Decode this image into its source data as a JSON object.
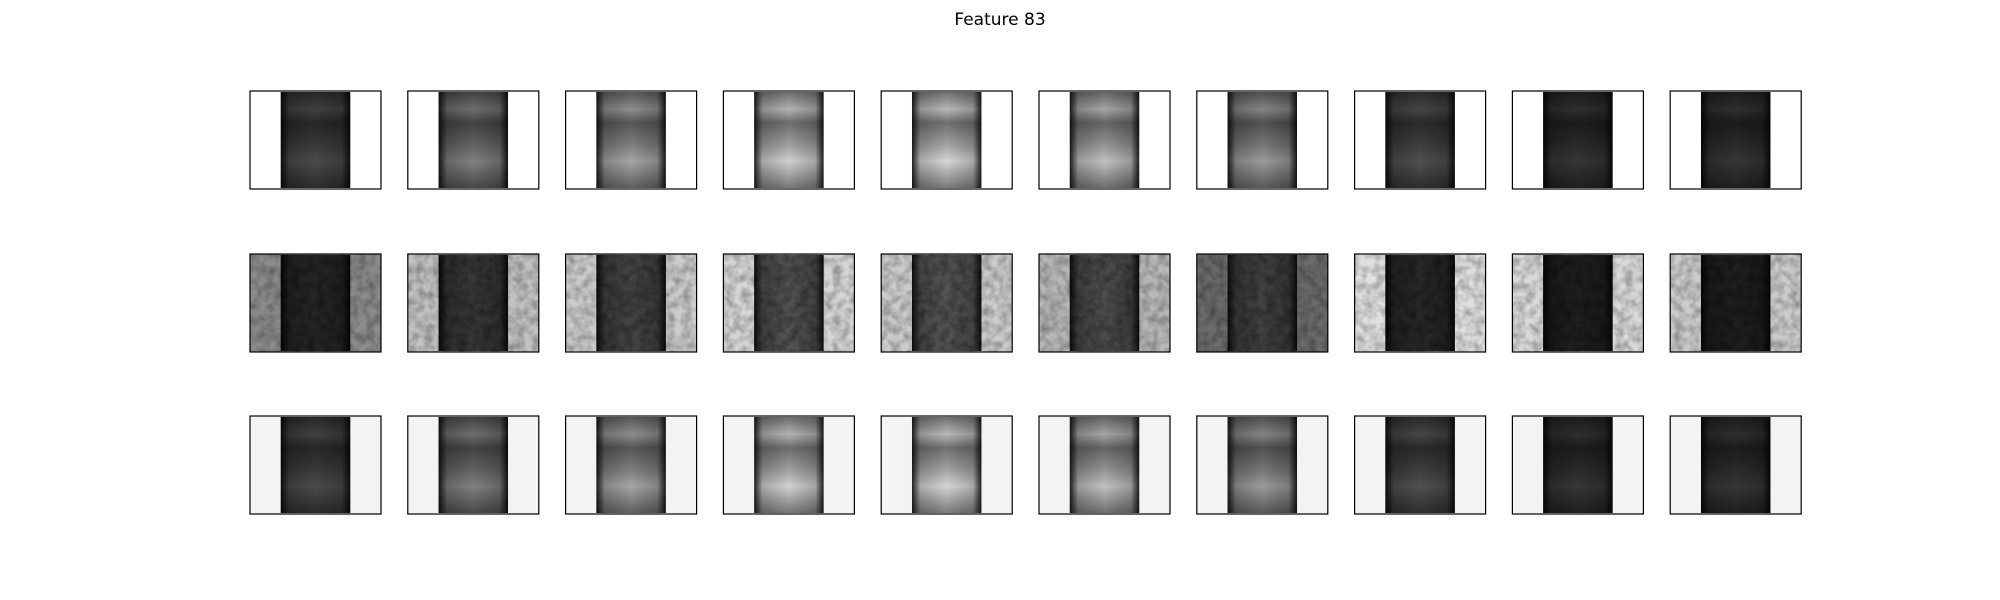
{
  "title": "Feature 83"
}
